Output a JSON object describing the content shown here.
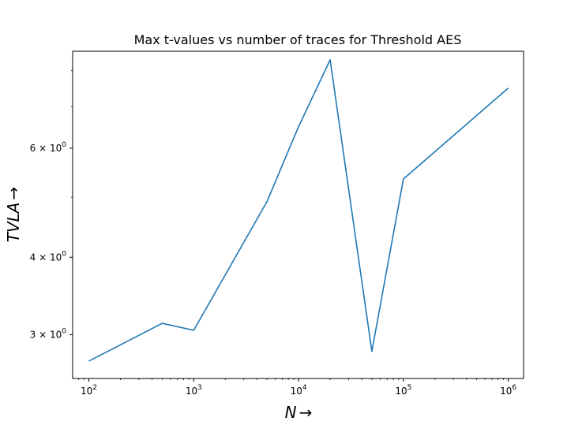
{
  "chart_data": {
    "type": "line",
    "title": "Max t-values vs number of traces for Threshold AES",
    "xlabel_main": "N",
    "xlabel_arrow": "→",
    "ylabel_main": "TVLA",
    "ylabel_arrow": "→",
    "x_scale": "log",
    "y_scale": "log",
    "xlim": [
      70,
      1400000
    ],
    "ylim": [
      2.55,
      8.6
    ],
    "grid": false,
    "x_ticks": [
      {
        "value": 100,
        "base": "10",
        "exp": "2"
      },
      {
        "value": 1000,
        "base": "10",
        "exp": "3"
      },
      {
        "value": 10000,
        "base": "10",
        "exp": "4"
      },
      {
        "value": 100000,
        "base": "10",
        "exp": "5"
      },
      {
        "value": 1000000,
        "base": "10",
        "exp": "6"
      }
    ],
    "y_ticks": [
      {
        "value": 3,
        "mant": "3 × 10",
        "exp": "0"
      },
      {
        "value": 4,
        "mant": "4 × 10",
        "exp": "0"
      },
      {
        "value": 6,
        "mant": "6 × 10",
        "exp": "0"
      }
    ],
    "y_minor_ticks": [
      5,
      7,
      8
    ],
    "series": [
      {
        "color": "#1f77b4",
        "x": [
          100,
          500,
          1000,
          5000,
          10000,
          20000,
          50000,
          100000,
          1000000
        ],
        "y": [
          2.72,
          3.13,
          3.05,
          4.92,
          6.5,
          8.33,
          2.82,
          5.35,
          7.5
        ]
      }
    ]
  }
}
